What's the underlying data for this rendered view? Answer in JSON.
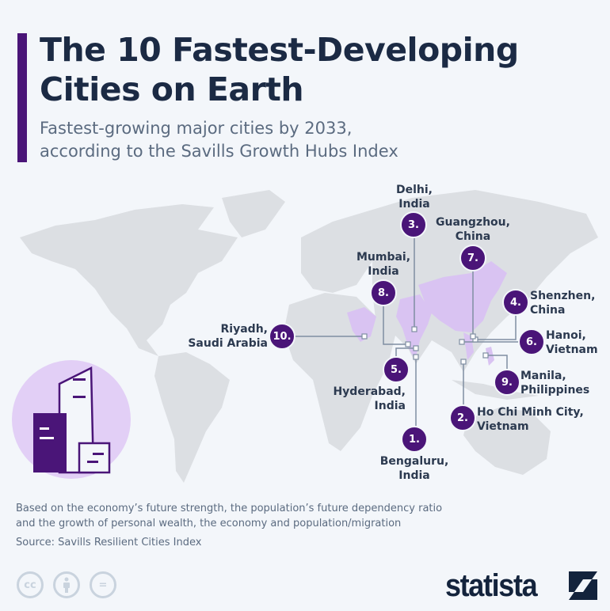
{
  "header": {
    "title_line1": "The 10 Fastest-Developing",
    "title_line2": "Cities on Earth",
    "subtitle_line1": "Fastest-growing major cities by 2033,",
    "subtitle_line2": "according to the Savills Growth Hubs Index"
  },
  "colors": {
    "accent": "#4a1578",
    "highlight_country": "#d9c3f2",
    "land": "#dcdfe3",
    "background": "#f3f6fa"
  },
  "highlighted_countries": [
    "Saudi Arabia",
    "India",
    "China",
    "Vietnam",
    "Philippines"
  ],
  "cities": [
    {
      "rank": "1.",
      "name": "Bengaluru,",
      "country": "India"
    },
    {
      "rank": "2.",
      "name": "Ho Chi Minh City,",
      "country": "Vietnam"
    },
    {
      "rank": "3.",
      "name": "Delhi,",
      "country": "India"
    },
    {
      "rank": "4.",
      "name": "Shenzhen,",
      "country": "China"
    },
    {
      "rank": "5.",
      "name": "Hyderabad,",
      "country": "India"
    },
    {
      "rank": "6.",
      "name": "Hanoi,",
      "country": "Vietnam"
    },
    {
      "rank": "7.",
      "name": "Guangzhou,",
      "country": "China"
    },
    {
      "rank": "8.",
      "name": "Mumbai,",
      "country": "India"
    },
    {
      "rank": "9.",
      "name": "Manila,",
      "country": "Philippines"
    },
    {
      "rank": "10.",
      "name": "Riyadh,",
      "country": "Saudi Arabia"
    }
  ],
  "footer": {
    "note_line1": "Based on the economy’s future strength, the population’s future dependency ratio",
    "note_line2": "and the growth of personal wealth, the economy and population/migration",
    "source": "Source: Savills Resilient Cities Index",
    "license_icons": [
      "cc-icon",
      "attribution-icon",
      "no-derivatives-icon"
    ],
    "cc_label": "cc",
    "nd_label": "=",
    "logo": "statista"
  }
}
